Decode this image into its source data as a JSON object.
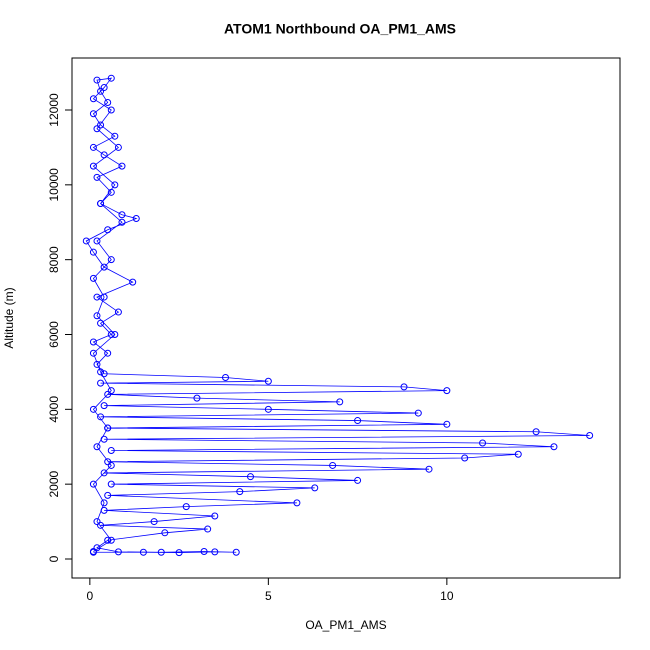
{
  "chart_data": {
    "type": "scatter",
    "title": "ATOM1 Northbound OA_PM1_AMS",
    "x_label": "OA_PM1_AMS",
    "y_label": "Altitude (m)",
    "xlim": [
      -0.5,
      14.85
    ],
    "ylim": [
      -508,
      13390
    ],
    "xticks": [
      0,
      5,
      10
    ],
    "yticks": [
      0,
      2000,
      4000,
      6000,
      8000,
      10000,
      12000
    ],
    "color": "#0000ff",
    "line_color": "#0000ff",
    "series": [
      {
        "name": "OA_PM1_AMS",
        "x": [
          0.1,
          1.5,
          2.5,
          3.5,
          4.1,
          3.2,
          2,
          0.8,
          0.2,
          0.5,
          2.1,
          3.3,
          0.3,
          1.8,
          3.5,
          0.4,
          2.7,
          5.8,
          0.5,
          4.2,
          6.3,
          0.6,
          7.5,
          4.5,
          0.4,
          9.5,
          6.8,
          0.5,
          10.5,
          12,
          0.6,
          13,
          11,
          0.4,
          14,
          12.5,
          0.5,
          10,
          7.5,
          0.3,
          9.2,
          5,
          0.4,
          7,
          3,
          0.5,
          10,
          8.8,
          0.3,
          5,
          3.8,
          0.4,
          0.2,
          0.5,
          0.1,
          0.6,
          0.3,
          0.8,
          0.2,
          1.2,
          0.4,
          0.1,
          -0.1,
          0.5,
          1.3,
          0.9,
          0.3,
          0.6,
          0.2,
          0.9,
          0.4,
          0.1,
          0.7,
          0.3,
          0.1,
          0.5,
          0.3,
          0.2,
          0.6,
          0.4,
          0.1,
          0.6,
          0.2,
          0.8,
          0.1,
          0.7,
          0.3,
          0.9,
          0.2,
          0.6,
          0.1,
          0.4,
          0.2,
          0.7,
          0.1,
          0.3,
          0.6,
          0.1,
          0.5,
          0.2,
          0.6,
          0.1,
          0.4,
          0.2,
          0.6,
          0.1
        ],
        "values": [
          180,
          180,
          170,
          190,
          180,
          200,
          180,
          190,
          300,
          500,
          700,
          800,
          900,
          1000,
          1150,
          1300,
          1400,
          1500,
          1700,
          1800,
          1900,
          2000,
          2100,
          2200,
          2300,
          2400,
          2500,
          2600,
          2700,
          2800,
          2900,
          3000,
          3100,
          3200,
          3300,
          3400,
          3500,
          3600,
          3700,
          3800,
          3900,
          4000,
          4100,
          4200,
          4300,
          4400,
          4500,
          4600,
          4700,
          4750,
          4850,
          4950,
          5200,
          5500,
          5800,
          6000,
          6300,
          6600,
          7000,
          7400,
          7800,
          8200,
          8500,
          8800,
          9100,
          9200,
          9500,
          9800,
          10200,
          10500,
          10800,
          11000,
          11300,
          11600,
          11900,
          12200,
          12500,
          12800,
          12850,
          12600,
          12300,
          12000,
          11500,
          11000,
          10500,
          10000,
          9500,
          9000,
          8500,
          8000,
          7500,
          7000,
          6500,
          6000,
          5500,
          5000,
          4500,
          4000,
          3500,
          3000,
          2500,
          2000,
          1500,
          1000,
          500,
          200
        ]
      }
    ]
  }
}
